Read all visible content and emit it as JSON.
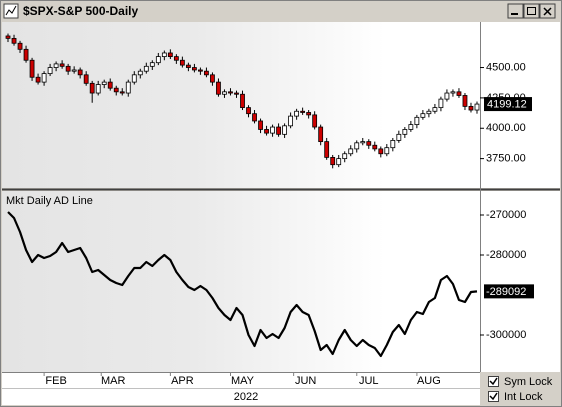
{
  "chart_data": [
    {
      "type": "candlestick",
      "title": "$SPX-S&P 500-Daily",
      "x": [
        0,
        2,
        4,
        6,
        8,
        10,
        12,
        14,
        16,
        18,
        20,
        22,
        24,
        26,
        28,
        30,
        32,
        34,
        36,
        38,
        40,
        42,
        44,
        46,
        48,
        50,
        52,
        54,
        56,
        58,
        60,
        62,
        64,
        66,
        68,
        70,
        72,
        74,
        76,
        78,
        80,
        82,
        84,
        86,
        88,
        90,
        92,
        94,
        96,
        98,
        100,
        102,
        104,
        106,
        108,
        110,
        112,
        114,
        116,
        118,
        120,
        122,
        124,
        126,
        128,
        130,
        132,
        134,
        136,
        138,
        140,
        142,
        144,
        146,
        148,
        150,
        152,
        154,
        156
      ],
      "open": [
        4760,
        4740,
        4700,
        4650,
        4560,
        4420,
        4380,
        4450,
        4500,
        4530,
        4510,
        4470,
        4480,
        4440,
        4370,
        4290,
        4360,
        4380,
        4330,
        4300,
        4290,
        4380,
        4440,
        4470,
        4510,
        4540,
        4590,
        4620,
        4590,
        4560,
        4520,
        4500,
        4480,
        4470,
        4440,
        4380,
        4280,
        4300,
        4290,
        4280,
        4170,
        4120,
        4060,
        3990,
        3960,
        4010,
        3950,
        4020,
        4100,
        4140,
        4130,
        4110,
        4010,
        3890,
        3760,
        3700,
        3750,
        3790,
        3830,
        3880,
        3890,
        3860,
        3830,
        3790,
        3840,
        3900,
        3950,
        3990,
        4030,
        4090,
        4120,
        4140,
        4170,
        4240,
        4290,
        4300,
        4270,
        4180,
        4150
      ],
      "high": [
        4780,
        4770,
        4720,
        4680,
        4580,
        4450,
        4470,
        4530,
        4550,
        4560,
        4530,
        4510,
        4500,
        4470,
        4390,
        4390,
        4400,
        4410,
        4350,
        4330,
        4400,
        4470,
        4490,
        4540,
        4560,
        4620,
        4640,
        4650,
        4610,
        4590,
        4540,
        4530,
        4500,
        4500,
        4460,
        4410,
        4320,
        4330,
        4310,
        4310,
        4190,
        4150,
        4080,
        4020,
        4030,
        4040,
        4040,
        4130,
        4160,
        4170,
        4150,
        4140,
        4030,
        3920,
        3780,
        3780,
        3810,
        3860,
        3900,
        3920,
        3910,
        3890,
        3850,
        3870,
        3920,
        3980,
        4010,
        4060,
        4110,
        4150,
        4160,
        4200,
        4260,
        4320,
        4320,
        4330,
        4290,
        4210,
        4220
      ],
      "low": [
        4710,
        4680,
        4620,
        4540,
        4390,
        4360,
        4350,
        4430,
        4470,
        4490,
        4440,
        4450,
        4410,
        4350,
        4210,
        4270,
        4330,
        4310,
        4270,
        4270,
        4260,
        4360,
        4410,
        4450,
        4480,
        4520,
        4560,
        4570,
        4530,
        4500,
        4470,
        4460,
        4440,
        4420,
        4350,
        4260,
        4250,
        4270,
        4250,
        4150,
        4090,
        4040,
        3960,
        3940,
        3930,
        3930,
        3920,
        4000,
        4070,
        4110,
        4080,
        3990,
        3860,
        3740,
        3670,
        3680,
        3720,
        3770,
        3800,
        3860,
        3830,
        3810,
        3760,
        3770,
        3810,
        3880,
        3920,
        3970,
        4000,
        4070,
        4090,
        4120,
        4140,
        4220,
        4260,
        4250,
        4150,
        4130,
        4120
      ],
      "close": [
        4740,
        4700,
        4650,
        4560,
        4420,
        4380,
        4450,
        4500,
        4530,
        4510,
        4470,
        4480,
        4440,
        4370,
        4290,
        4360,
        4380,
        4330,
        4300,
        4290,
        4380,
        4440,
        4470,
        4510,
        4540,
        4590,
        4620,
        4590,
        4560,
        4520,
        4500,
        4480,
        4470,
        4440,
        4380,
        4280,
        4300,
        4290,
        4280,
        4170,
        4120,
        4060,
        3990,
        3960,
        4010,
        3950,
        4020,
        4100,
        4140,
        4130,
        4110,
        4010,
        3890,
        3760,
        3700,
        3750,
        3790,
        3830,
        3880,
        3890,
        3860,
        3830,
        3790,
        3840,
        3900,
        3950,
        3990,
        4030,
        4090,
        4120,
        4140,
        4170,
        4240,
        4290,
        4300,
        4270,
        4180,
        4150,
        4199.12
      ],
      "up_color": "#ffffff",
      "down_color": "#cc0000",
      "xlim": [
        -2,
        157
      ],
      "ylim": [
        3508,
        4875
      ],
      "yticks": [
        {
          "value": 3750,
          "label": "3750.00"
        },
        {
          "value": 4000,
          "label": "4000.00"
        },
        {
          "value": 4250,
          "label": "4250.00"
        },
        {
          "value": 4500,
          "label": "4500.00"
        }
      ]
    },
    {
      "type": "line",
      "title": "Mkt Daily AD Line",
      "color": "#000000",
      "x": [
        0,
        2,
        4,
        6,
        8,
        10,
        12,
        14,
        16,
        18,
        20,
        22,
        24,
        26,
        28,
        30,
        32,
        34,
        36,
        38,
        40,
        42,
        44,
        46,
        48,
        50,
        52,
        54,
        56,
        58,
        60,
        62,
        64,
        66,
        68,
        70,
        72,
        74,
        76,
        78,
        80,
        82,
        84,
        86,
        88,
        90,
        92,
        94,
        96,
        98,
        100,
        102,
        104,
        106,
        108,
        110,
        112,
        114,
        116,
        118,
        120,
        122,
        124,
        126,
        128,
        130,
        132,
        134,
        136,
        138,
        140,
        142,
        144,
        146,
        148,
        150,
        152,
        154,
        156
      ],
      "values": [
        -269250,
        -270750,
        -274250,
        -278750,
        -281750,
        -280000,
        -280750,
        -280250,
        -279250,
        -277000,
        -279250,
        -278750,
        -278250,
        -280750,
        -284250,
        -283750,
        -285000,
        -286250,
        -287000,
        -287500,
        -285250,
        -283250,
        -283250,
        -281750,
        -282750,
        -281250,
        -280000,
        -281250,
        -284250,
        -286250,
        -288000,
        -288750,
        -287750,
        -288750,
        -290750,
        -293250,
        -295000,
        -296250,
        -293250,
        -295000,
        -300000,
        -302750,
        -298750,
        -300750,
        -299750,
        -300750,
        -298250,
        -294250,
        -292500,
        -294250,
        -295000,
        -299000,
        -303750,
        -302500,
        -304750,
        -301250,
        -298750,
        -301250,
        -302750,
        -301250,
        -302500,
        -303250,
        -305250,
        -302500,
        -299250,
        -297500,
        -299750,
        -296250,
        -294250,
        -294750,
        -291750,
        -290750,
        -286250,
        -285250,
        -287250,
        -291250,
        -291750,
        -289250,
        -289092
      ],
      "xlim": [
        -2,
        157
      ],
      "ylim": [
        -309250,
        -264500
      ],
      "yticks": [
        -270000,
        -280000,
        -300000
      ],
      "xticks": [
        {
          "value": 16,
          "label": "FEB"
        },
        {
          "value": 35,
          "label": "MAR"
        },
        {
          "value": 58,
          "label": "APR"
        },
        {
          "value": 78,
          "label": "MAY"
        },
        {
          "value": 99,
          "label": "JUN"
        },
        {
          "value": 120,
          "label": "JUL"
        },
        {
          "value": 140,
          "label": "AUG"
        }
      ],
      "xlabel": "2022"
    }
  ],
  "controls": [
    "Sym Lock",
    "Int Lock"
  ]
}
